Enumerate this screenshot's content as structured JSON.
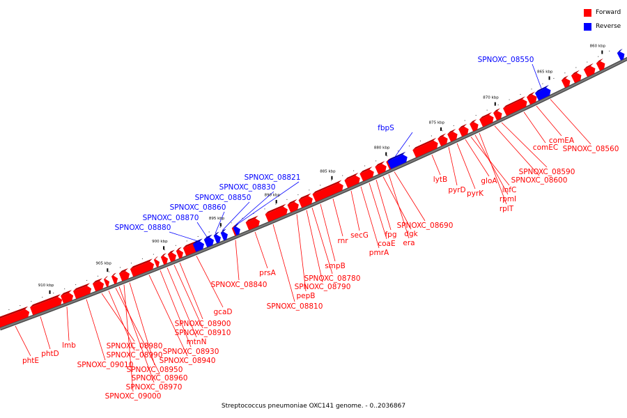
{
  "legend": {
    "items": [
      {
        "label": "Forward",
        "color": "#ff0000"
      },
      {
        "label": "Reverse",
        "color": "#0000ff"
      }
    ]
  },
  "caption": "Streptococcus pneumoniae OXC141 genome. - 0..2036867",
  "colors": {
    "forward": "#ff0000",
    "reverse": "#0000ff",
    "backbone": "#7a7a7a",
    "label_line_forward": "#ff0000",
    "label_line_reverse": "#0000ff"
  },
  "ticks": [
    "860 kbp",
    "865 kbp",
    "870 kbp",
    "875 kbp",
    "880 kbp",
    "885 kbp",
    "890 kbp",
    "895 kbp",
    "900 kbp",
    "905 kbp",
    "910 kbp"
  ],
  "forward_labels": [
    "phtE",
    "phtD",
    "lmb",
    "SPNOXC_09010",
    "SPNOXC_08980",
    "SPNOXC_08990",
    "SPNOXC_08960",
    "SPNOXC_08970",
    "SPNOXC_09000",
    "SPNOXC_08950",
    "SPNOXC_08940",
    "SPNOXC_08930",
    "mtnN",
    "SPNOXC_08910",
    "SPNOXC_08900",
    "gcaD",
    "SPNOXC_08840",
    "prsA",
    "SPNOXC_08810",
    "pepB",
    "SPNOXC_08790",
    "SPNOXC_08780",
    "smpB",
    "rnr",
    "secG",
    "pmrA",
    "coaE",
    "fpg",
    "dgk",
    "era",
    "SPNOXC_08690",
    "lytB",
    "pyrD",
    "pyrK",
    "gloA",
    "infC",
    "rpmI",
    "rplT",
    "SPNOXC_08600",
    "SPNOXC_08590",
    "comEC",
    "comEA",
    "SPNOXC_08560"
  ],
  "reverse_labels": [
    "SPNOXC_08880",
    "SPNOXC_08870",
    "SPNOXC_08860",
    "SPNOXC_08850",
    "SPNOXC_08830",
    "SPNOXC_08821",
    "fbpS",
    "SPNOXC_08550"
  ]
}
